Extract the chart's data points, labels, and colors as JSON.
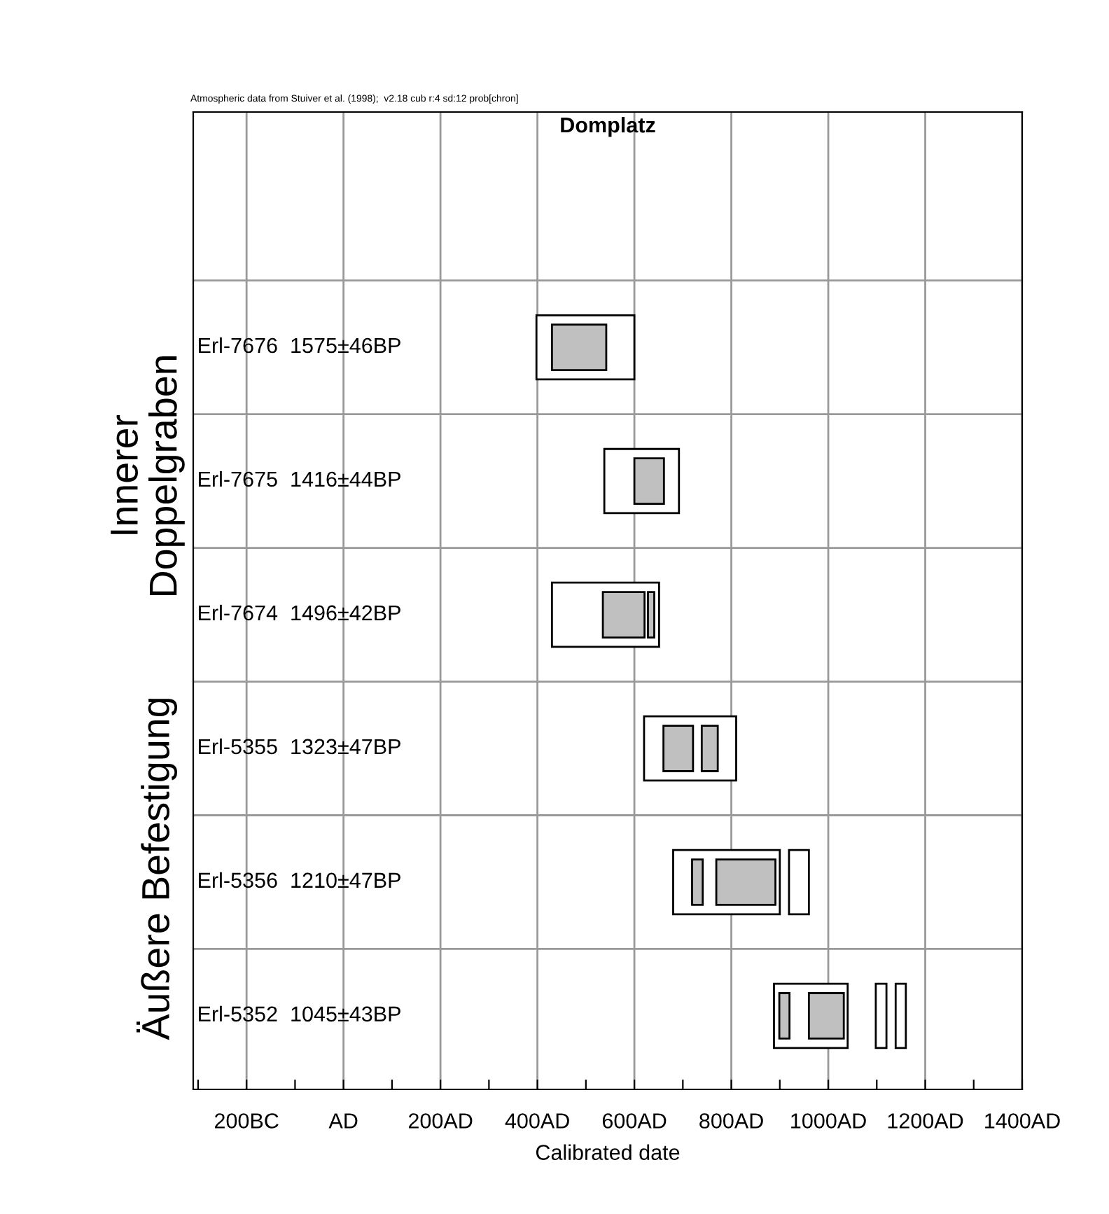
{
  "chart_data": {
    "type": "bar",
    "orientation": "horizontal",
    "title": "Domplatz",
    "xlabel": "Calibrated date",
    "categories": [
      "Erl-7676  1575±46BP",
      "Erl-7675  1416±44BP",
      "Erl-7674  1496±42BP",
      "Erl-5355  1323±47BP",
      "Erl-5356  1210±47BP",
      "Erl-5352  1045±43BP"
    ],
    "series": [
      {
        "color": "#ffffff",
        "base": [
          398,
          538,
          430,
          620,
          680,
          888
        ],
        "values": [
          202,
          154,
          221,
          190,
          220,
          152
        ]
      },
      {
        "color": "#ffffff",
        "base": [
          null,
          null,
          null,
          null,
          919,
          1098
        ],
        "values": [
          null,
          null,
          null,
          null,
          41,
          22
        ]
      },
      {
        "color": "#ffffff",
        "base": [
          null,
          null,
          null,
          null,
          null,
          1139
        ],
        "values": [
          null,
          null,
          null,
          null,
          null,
          21
        ]
      },
      {
        "color": "#c0c0c0",
        "base": [
          430,
          600,
          535,
          660,
          719,
          899
        ],
        "values": [
          112,
          61,
          86,
          61,
          22,
          21
        ]
      },
      {
        "color": "#c0c0c0",
        "base": [
          null,
          null,
          628,
          739,
          769,
          960
        ],
        "values": [
          null,
          null,
          13,
          33,
          122,
          72
        ]
      }
    ],
    "xlim": [
      -310,
      1400
    ],
    "xticks": [
      {
        "value": -300,
        "label": null
      },
      {
        "value": -200,
        "label": "200BC"
      },
      {
        "value": -100,
        "label": null
      },
      {
        "value": 0,
        "label": "AD"
      },
      {
        "value": 100,
        "label": null
      },
      {
        "value": 200,
        "label": "200AD"
      },
      {
        "value": 300,
        "label": null
      },
      {
        "value": 400,
        "label": "400AD"
      },
      {
        "value": 500,
        "label": null
      },
      {
        "value": 600,
        "label": "600AD"
      },
      {
        "value": 700,
        "label": null
      },
      {
        "value": 800,
        "label": "800AD"
      },
      {
        "value": 900,
        "label": null
      },
      {
        "value": 1000,
        "label": "1000AD"
      },
      {
        "value": 1100,
        "label": null
      },
      {
        "value": 1200,
        "label": "1200AD"
      },
      {
        "value": 1300,
        "label": null
      },
      {
        "value": 1400,
        "label": "1400AD"
      }
    ],
    "grid": true,
    "annotations": [
      "Atmospheric data from Stuiver et al. (1998);  v2.18 cub r:4 sd:12 prob[chron]",
      "Innerer\nDoppelgraben",
      "Äußere Befestigung"
    ]
  }
}
